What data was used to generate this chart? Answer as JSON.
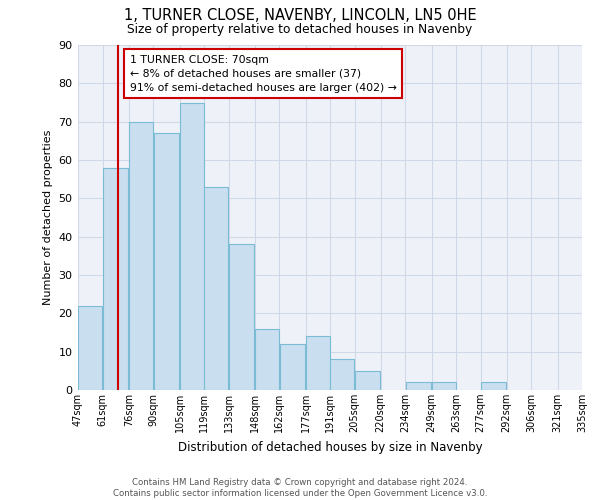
{
  "title": "1, TURNER CLOSE, NAVENBY, LINCOLN, LN5 0HE",
  "subtitle": "Size of property relative to detached houses in Navenby",
  "xlabel": "Distribution of detached houses by size in Navenby",
  "ylabel": "Number of detached properties",
  "bin_edges": [
    47,
    61,
    76,
    90,
    105,
    119,
    133,
    148,
    162,
    177,
    191,
    205,
    220,
    234,
    249,
    263,
    277,
    292,
    306,
    321,
    335
  ],
  "bar_heights": [
    22,
    58,
    70,
    67,
    75,
    53,
    38,
    16,
    12,
    14,
    8,
    5,
    0,
    2,
    2,
    0,
    2,
    0,
    0,
    0
  ],
  "bar_color": "#c9dff0",
  "bar_edge_color": "#7bbbd4",
  "grid_color": "#d0d8e8",
  "background_color": "#eef2f8",
  "vline_x": 70,
  "vline_color": "#cc0000",
  "annotation_line1": "1 TURNER CLOSE: 70sqm",
  "annotation_line2": "← 8% of detached houses are smaller (37)",
  "annotation_line3": "91% of semi-detached houses are larger (402) →",
  "annotation_box_color": "#cc0000",
  "ylim": [
    0,
    90
  ],
  "yticks": [
    0,
    10,
    20,
    30,
    40,
    50,
    60,
    70,
    80,
    90
  ],
  "footer_text": "Contains HM Land Registry data © Crown copyright and database right 2024.\nContains public sector information licensed under the Open Government Licence v3.0.",
  "tick_labels": [
    "47sqm",
    "61sqm",
    "76sqm",
    "90sqm",
    "105sqm",
    "119sqm",
    "133sqm",
    "148sqm",
    "162sqm",
    "177sqm",
    "191sqm",
    "205sqm",
    "220sqm",
    "234sqm",
    "249sqm",
    "263sqm",
    "277sqm",
    "292sqm",
    "306sqm",
    "321sqm",
    "335sqm"
  ]
}
